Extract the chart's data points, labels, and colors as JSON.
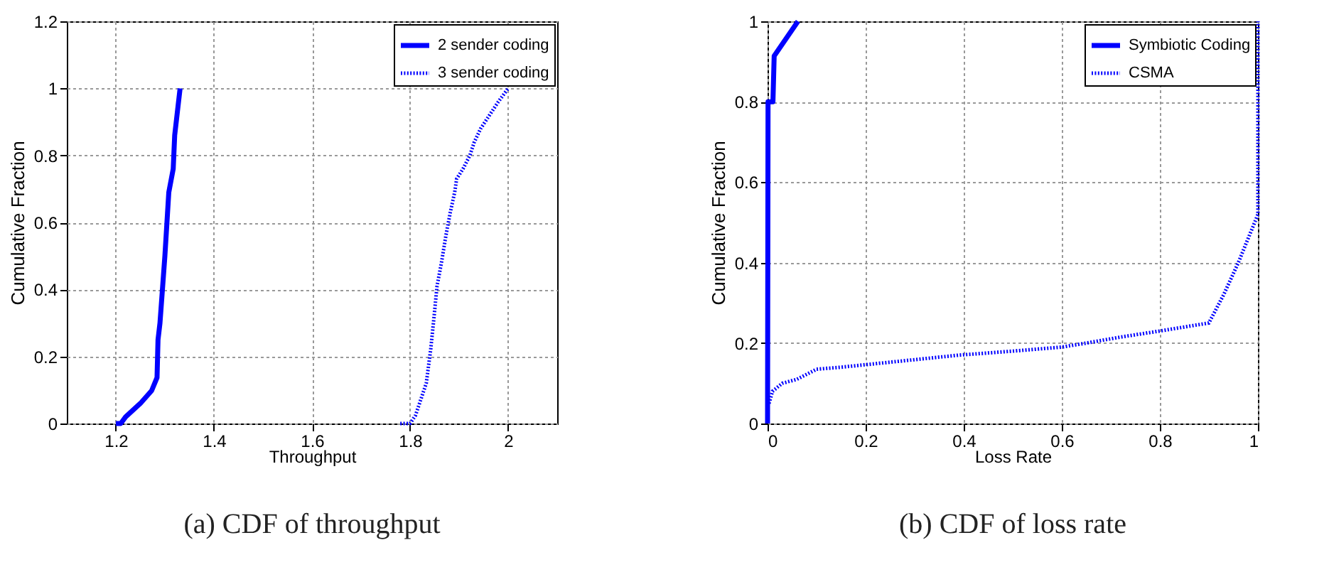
{
  "chart_data": [
    {
      "type": "line",
      "title": "(a) CDF of throughput",
      "xlabel": "Throughput",
      "ylabel": "Cumulative Fraction",
      "xlim": [
        1.1,
        2.1
      ],
      "ylim": [
        0,
        1.2
      ],
      "xticks": [
        1.2,
        1.4,
        1.6,
        1.8,
        2
      ],
      "yticks": [
        0,
        0.2,
        0.4,
        0.6,
        0.8,
        1,
        1.2
      ],
      "grid": true,
      "legend": "top right",
      "series": [
        {
          "name": "2 sender coding",
          "color": "#0000ff",
          "line_style": "solid",
          "x": [
            1.2,
            1.21,
            1.22,
            1.25,
            1.273,
            1.284,
            1.286,
            1.29,
            1.3,
            1.308,
            1.317,
            1.32,
            1.331
          ],
          "values": [
            0,
            0,
            0.02,
            0.06,
            0.098,
            0.137,
            0.25,
            0.3,
            0.5,
            0.69,
            0.76,
            0.86,
            1
          ]
        },
        {
          "name": "3 sender coding",
          "color": "#0000ff",
          "line_style": "dotted",
          "x": [
            1.78,
            1.8,
            1.811,
            1.833,
            1.842,
            1.849,
            1.855,
            1.864,
            1.873,
            1.882,
            1.891,
            1.895,
            1.908,
            1.922,
            1.931,
            1.944,
            1.962,
            1.98,
            2
          ],
          "values": [
            0,
            0,
            0.024,
            0.12,
            0.22,
            0.32,
            0.41,
            0.48,
            0.56,
            0.63,
            0.69,
            0.73,
            0.76,
            0.8,
            0.84,
            0.88,
            0.92,
            0.96,
            1
          ]
        }
      ]
    },
    {
      "type": "line",
      "title": "(b) CDF of loss rate",
      "xlabel": "Loss Rate",
      "ylabel": "Cumulative Fraction",
      "xlim": [
        0,
        1
      ],
      "ylim": [
        0,
        1
      ],
      "xticks": [
        0,
        0.2,
        0.4,
        0.6,
        0.8,
        1
      ],
      "yticks": [
        0,
        0.2,
        0.4,
        0.6,
        0.8,
        1
      ],
      "grid": true,
      "legend": "top right",
      "series": [
        {
          "name": "Symbiotic Coding",
          "color": "#0000ff",
          "line_style": "solid",
          "x": [
            0,
            0.001,
            0.011,
            0.0135,
            0.062
          ],
          "values": [
            0,
            0.8,
            0.8,
            0.914,
            1
          ]
        },
        {
          "name": "CSMA",
          "color": "#0000ff",
          "line_style": "dotted",
          "x": [
            0.003,
            0.01,
            0.03,
            0.06,
            0.1,
            0.15,
            0.27,
            0.39,
            0.5,
            0.6,
            0.65,
            0.72,
            0.8,
            0.85,
            0.9,
            0.93,
            0.96,
            1,
            1
          ],
          "values": [
            0.05,
            0.08,
            0.1,
            0.11,
            0.135,
            0.14,
            0.155,
            0.17,
            0.18,
            0.19,
            0.2,
            0.215,
            0.23,
            0.24,
            0.25,
            0.32,
            0.4,
            0.52,
            1
          ]
        }
      ]
    }
  ]
}
